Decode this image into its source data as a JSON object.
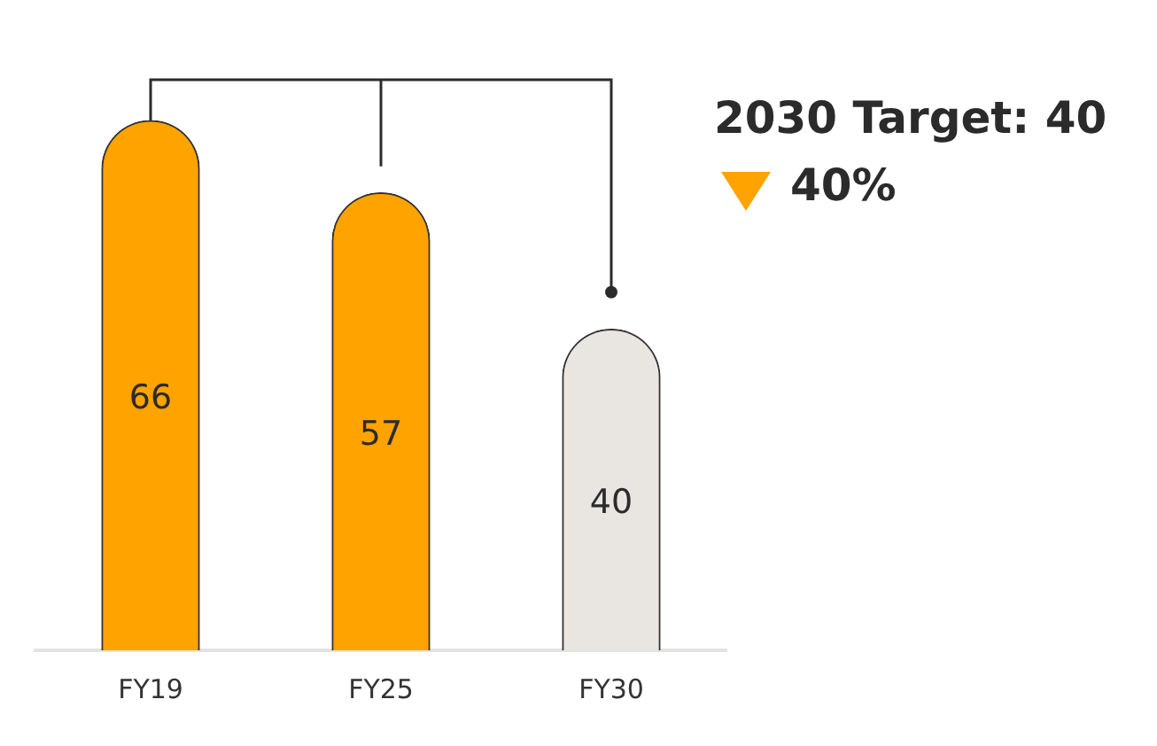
{
  "chart_data": {
    "type": "bar",
    "categories": [
      "FY19",
      "FY25",
      "FY30"
    ],
    "values": [
      66,
      57,
      40
    ],
    "colors": [
      "#ffa300",
      "#ffa300",
      "#e9e5e1"
    ],
    "tick_labels": "x",
    "grid": false,
    "legend": false,
    "data_labels": true,
    "annotations": [
      "2030 Target: 40",
      "40%"
    ]
  }
}
